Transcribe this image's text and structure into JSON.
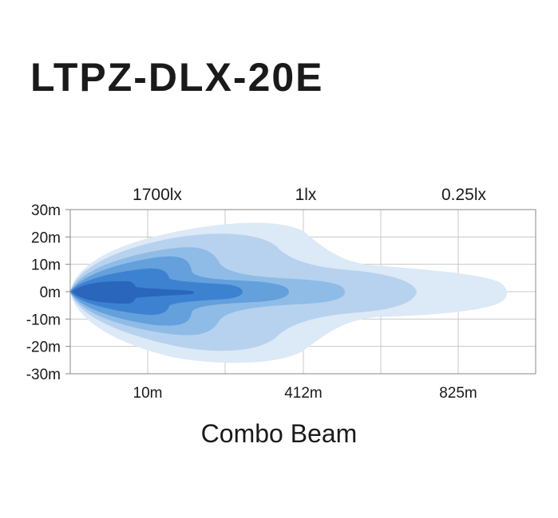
{
  "title": "LTPZ-DLX-20E",
  "chart_data": {
    "type": "area",
    "title": "LTPZ-DLX-20E",
    "subtitle": "Combo Beam",
    "y_tick_labels": [
      "30m",
      "20m",
      "10m",
      "0m",
      "-10m",
      "-20m",
      "-30m"
    ],
    "x_tick_labels": [
      "10m",
      "412m",
      "825m"
    ],
    "lux_labels": [
      "1700lx",
      "1lx",
      "0.25lx"
    ],
    "grid": true,
    "series": [
      {
        "color": "#dce9f7"
      },
      {
        "color": "#b7d2ee"
      },
      {
        "color": "#8fbce6"
      },
      {
        "color": "#63a0dc"
      },
      {
        "color": "#3d82d0"
      },
      {
        "color": "#2a66bb"
      }
    ]
  },
  "caption": "Combo Beam"
}
